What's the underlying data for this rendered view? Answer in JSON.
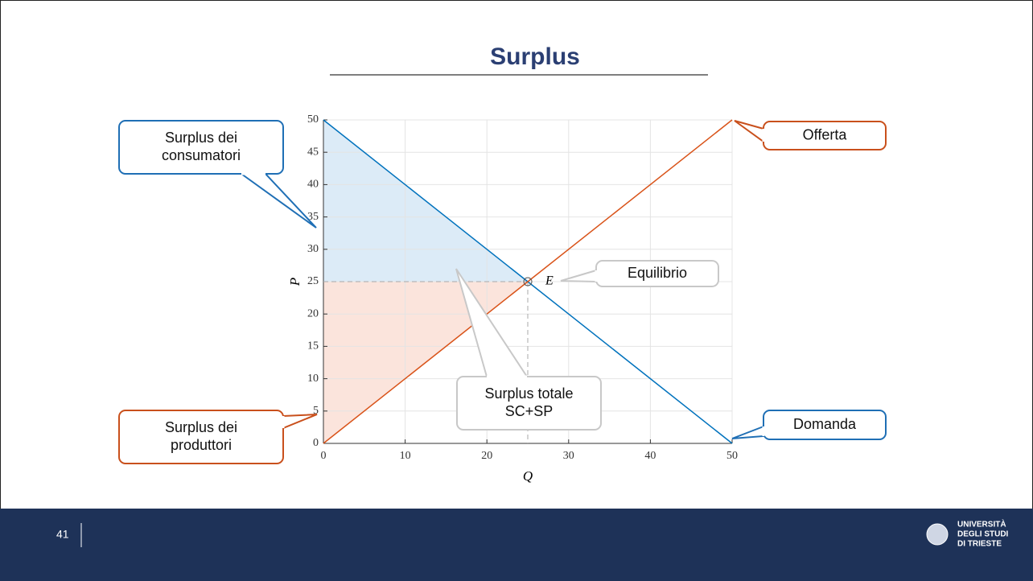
{
  "slide": {
    "title": "Surplus",
    "page_number": "41",
    "logo": [
      "UNIVERSITÀ",
      "DEGLI STUDI",
      "DI TRIESTE"
    ]
  },
  "chart_data": {
    "type": "line",
    "xlabel": "Q",
    "ylabel": "P",
    "x": [
      0,
      50
    ],
    "series": [
      {
        "name": "Domanda",
        "color": "#0072bd",
        "values": [
          50,
          0
        ]
      },
      {
        "name": "Offerta",
        "color": "#d95319",
        "values": [
          0,
          50
        ]
      }
    ],
    "areas": [
      {
        "color": "#dcebf7",
        "x": [
          0,
          25,
          0
        ],
        "values": [
          50,
          25,
          25
        ]
      },
      {
        "color": "#fbe4dc",
        "x": [
          0,
          25,
          0
        ],
        "values": [
          0,
          25,
          25
        ]
      }
    ],
    "equilibrium": {
      "x": 25,
      "y": 25,
      "label": "E"
    },
    "xlim": [
      0,
      50
    ],
    "xticks": [
      0,
      10,
      20,
      30,
      40,
      50
    ],
    "ylim": [
      0,
      50
    ],
    "yticks": [
      0,
      5,
      10,
      15,
      20,
      25,
      30,
      35,
      40,
      45,
      50
    ],
    "grid": true,
    "annotations": [
      {
        "lines": [
          "Surplus dei",
          "consumatori"
        ],
        "color": "#1f6fb5"
      },
      {
        "lines": [
          "Offerta"
        ],
        "color": "#c9501c"
      },
      {
        "lines": [
          "Equilibrio"
        ],
        "color": "#c8c8c8"
      },
      {
        "lines": [
          "Surplus totale",
          "SC+SP"
        ],
        "color": "#c8c8c8"
      },
      {
        "lines": [
          "Surplus dei",
          "produttori"
        ],
        "color": "#c9501c"
      },
      {
        "lines": [
          "Domanda"
        ],
        "color": "#1f6fb5"
      }
    ]
  }
}
